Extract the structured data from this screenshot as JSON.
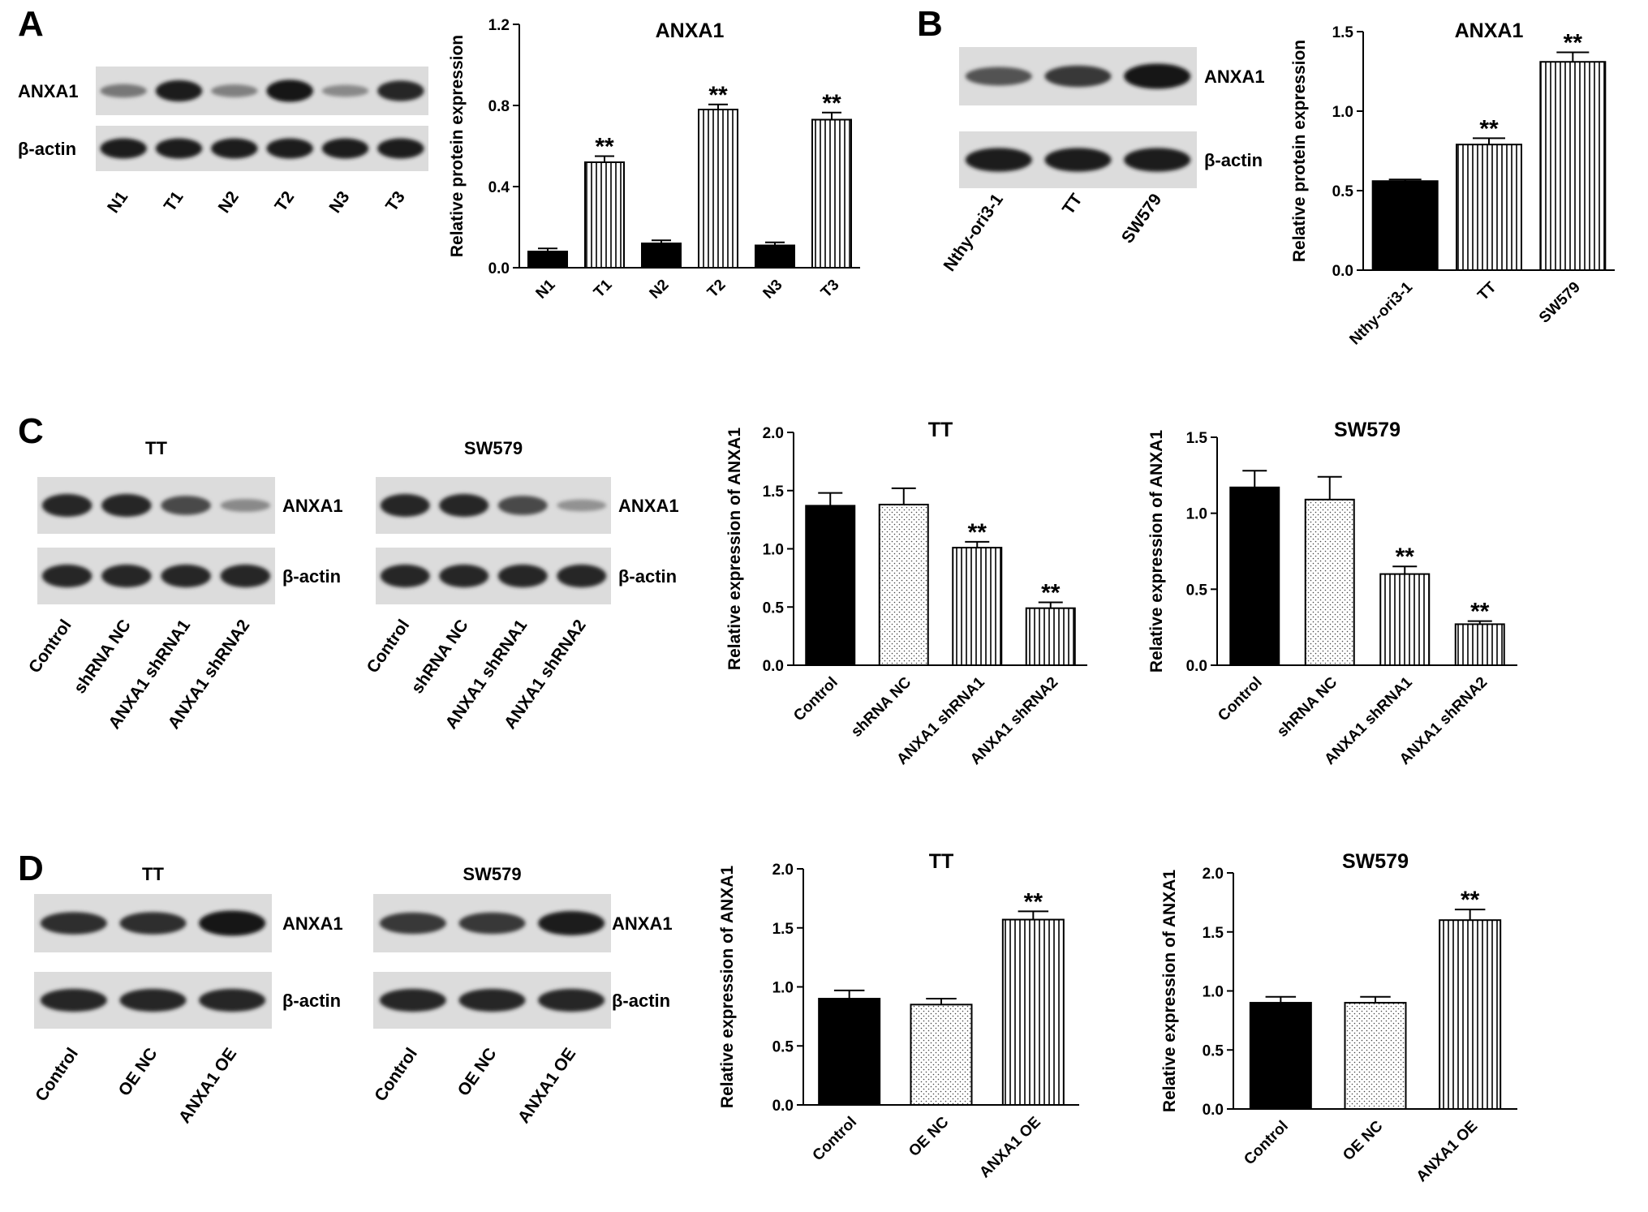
{
  "panels": [
    {
      "letter": "A"
    },
    {
      "letter": "B"
    },
    {
      "letter": "C"
    },
    {
      "letter": "D"
    }
  ],
  "blots": [
    {
      "id": "A",
      "title": "",
      "lanes": [
        "N1",
        "T1",
        "N2",
        "T2",
        "N3",
        "T3"
      ],
      "rows": [
        {
          "label": "ANXA1",
          "intensities": [
            0.45,
            0.95,
            0.4,
            1.0,
            0.35,
            0.9
          ]
        },
        {
          "label": "β-actin",
          "intensities": [
            0.95,
            0.95,
            0.95,
            0.95,
            0.95,
            0.95
          ]
        }
      ]
    },
    {
      "id": "B",
      "title": "",
      "lanes": [
        "Nthy-ori3-1",
        "TT",
        "SW579"
      ],
      "rows": [
        {
          "label": "ANXA1",
          "intensities": [
            0.65,
            0.8,
            1.0
          ]
        },
        {
          "label": "β-actin",
          "intensities": [
            0.95,
            0.95,
            0.95
          ]
        }
      ]
    },
    {
      "id": "C-TT",
      "title": "TT",
      "lanes": [
        "Control",
        "shRNA NC",
        "ANXA1 shRNA1",
        "ANXA1 shRNA2"
      ],
      "rows": [
        {
          "label": "ANXA1",
          "intensities": [
            0.9,
            0.9,
            0.7,
            0.35
          ]
        },
        {
          "label": "β-actin",
          "intensities": [
            0.9,
            0.9,
            0.9,
            0.9
          ]
        }
      ]
    },
    {
      "id": "C-SW579",
      "title": "SW579",
      "lanes": [
        "Control",
        "shRNA NC",
        "ANXA1 shRNA1",
        "ANXA1 shRNA2"
      ],
      "rows": [
        {
          "label": "ANXA1",
          "intensities": [
            0.9,
            0.9,
            0.7,
            0.3
          ]
        },
        {
          "label": "β-actin",
          "intensities": [
            0.9,
            0.9,
            0.9,
            0.9
          ]
        }
      ]
    },
    {
      "id": "D-TT",
      "title": "TT",
      "lanes": [
        "Control",
        "OE NC",
        "ANXA1 OE"
      ],
      "rows": [
        {
          "label": "ANXA1",
          "intensities": [
            0.85,
            0.85,
            1.0
          ]
        },
        {
          "label": "β-actin",
          "intensities": [
            0.9,
            0.9,
            0.9
          ]
        }
      ]
    },
    {
      "id": "D-SW579",
      "title": "SW579",
      "lanes": [
        "Control",
        "OE NC",
        "ANXA1 OE"
      ],
      "rows": [
        {
          "label": "ANXA1",
          "intensities": [
            0.8,
            0.8,
            0.95
          ]
        },
        {
          "label": "β-actin",
          "intensities": [
            0.9,
            0.9,
            0.9
          ]
        }
      ]
    }
  ],
  "chart_data": [
    {
      "id": "A",
      "type": "bar",
      "title": "ANXA1",
      "xlabel": "",
      "ylabel": "Relative protein expression",
      "categories": [
        "N1",
        "T1",
        "N2",
        "T2",
        "N3",
        "T3"
      ],
      "values": [
        0.08,
        0.52,
        0.12,
        0.78,
        0.11,
        0.73
      ],
      "errors": [
        0.015,
        0.03,
        0.015,
        0.025,
        0.015,
        0.035
      ],
      "fills": [
        "solid",
        "vlines",
        "solid",
        "vlines",
        "solid",
        "vlines"
      ],
      "significance": [
        "",
        "**",
        "",
        "**",
        "",
        "**"
      ],
      "ylim": [
        0,
        1.2
      ],
      "yticks": [
        "0.0",
        "0.4",
        "0.8",
        "1.2"
      ]
    },
    {
      "id": "B",
      "type": "bar",
      "title": "ANXA1",
      "xlabel": "",
      "ylabel": "Relative protein expression",
      "categories": [
        "Nthy-ori3-1",
        "TT",
        "SW579"
      ],
      "values": [
        0.56,
        0.79,
        1.31
      ],
      "errors": [
        0.01,
        0.04,
        0.06
      ],
      "fills": [
        "solid",
        "vlines",
        "vlines"
      ],
      "significance": [
        "",
        "**",
        "**"
      ],
      "ylim": [
        0,
        1.5
      ],
      "yticks": [
        "0.0",
        "0.5",
        "1.0",
        "1.5"
      ]
    },
    {
      "id": "C-TT",
      "type": "bar",
      "title": "TT",
      "xlabel": "",
      "ylabel": "Relative expression of ANXA1",
      "categories": [
        "Control",
        "shRNA NC",
        "ANXA1 shRNA1",
        "ANXA1 shRNA2"
      ],
      "values": [
        1.37,
        1.38,
        1.01,
        0.49
      ],
      "errors": [
        0.11,
        0.14,
        0.05,
        0.05
      ],
      "fills": [
        "solid",
        "dots",
        "vlines",
        "vlines"
      ],
      "significance": [
        "",
        "",
        "**",
        "**"
      ],
      "ylim": [
        0,
        2.0
      ],
      "yticks": [
        "0.0",
        "0.5",
        "1.0",
        "1.5",
        "2.0"
      ]
    },
    {
      "id": "C-SW579",
      "type": "bar",
      "title": "SW579",
      "xlabel": "",
      "ylabel": "Relative expression of ANXA1",
      "categories": [
        "Control",
        "shRNA NC",
        "ANXA1 shRNA1",
        "ANXA1 shRNA2"
      ],
      "values": [
        1.17,
        1.09,
        0.6,
        0.27
      ],
      "errors": [
        0.11,
        0.15,
        0.05,
        0.02
      ],
      "fills": [
        "solid",
        "dots",
        "vlines",
        "vlines"
      ],
      "significance": [
        "",
        "",
        "**",
        "**"
      ],
      "ylim": [
        0,
        1.5
      ],
      "yticks": [
        "0.0",
        "0.5",
        "1.0",
        "1.5"
      ]
    },
    {
      "id": "D-TT",
      "type": "bar",
      "title": "TT",
      "xlabel": "",
      "ylabel": "Relative expression of ANXA1",
      "categories": [
        "Control",
        "OE NC",
        "ANXA1 OE"
      ],
      "values": [
        0.9,
        0.85,
        1.57
      ],
      "errors": [
        0.07,
        0.05,
        0.07
      ],
      "fills": [
        "solid",
        "dots",
        "vlines"
      ],
      "significance": [
        "",
        "",
        "**"
      ],
      "ylim": [
        0,
        2.0
      ],
      "yticks": [
        "0.0",
        "0.5",
        "1.0",
        "1.5",
        "2.0"
      ]
    },
    {
      "id": "D-SW579",
      "type": "bar",
      "title": "SW579",
      "xlabel": "",
      "ylabel": "Relative expression of ANXA1",
      "categories": [
        "Control",
        "OE NC",
        "ANXA1 OE"
      ],
      "values": [
        0.9,
        0.9,
        1.6
      ],
      "errors": [
        0.05,
        0.05,
        0.09
      ],
      "fills": [
        "solid",
        "dots",
        "vlines"
      ],
      "significance": [
        "",
        "",
        "**"
      ],
      "ylim": [
        0,
        2.0
      ],
      "yticks": [
        "0.0",
        "0.5",
        "1.0",
        "1.5",
        "2.0"
      ]
    }
  ]
}
